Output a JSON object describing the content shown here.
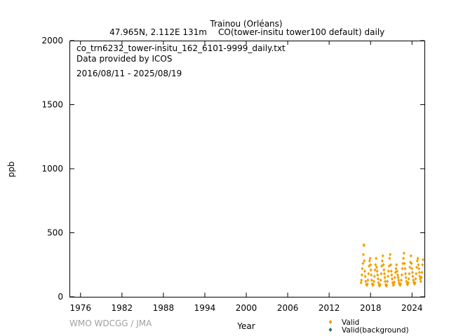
{
  "chart_data": {
    "type": "scatter",
    "title": "Trainou (Orléans)",
    "subtitle_location": "47.965N, 2.112E 131m",
    "subtitle_gas": "CO(tower-insitu tower100 default) daily",
    "info_lines": [
      "co_trn6232_tower-insitu_162_6101-9999_daily.txt",
      "Data provided by ICOS",
      "2016/08/11 - 2025/08/19"
    ],
    "xlabel": "Year",
    "ylabel": "ppb",
    "xlim": [
      1974.5,
      2025.8
    ],
    "ylim": [
      0,
      2000
    ],
    "x_ticks": [
      1976,
      1982,
      1988,
      1994,
      2000,
      2006,
      2012,
      2018,
      2024
    ],
    "y_ticks": [
      0,
      500,
      1000,
      1500,
      2000
    ],
    "grid": false,
    "legend_position": "bottom-right",
    "credit": "WMO WDCGG / JMA",
    "series": [
      {
        "name": "Valid",
        "color": "#f0a000",
        "marker": "diamond",
        "x": [
          2016.62,
          2016.68,
          2016.75,
          2016.82,
          2016.9,
          2016.96,
          2017.02,
          2017.06,
          2017.1,
          2017.16,
          2017.22,
          2017.3,
          2017.38,
          2017.46,
          2017.54,
          2017.62,
          2017.7,
          2017.78,
          2017.86,
          2017.94,
          2018.0,
          2018.05,
          2018.1,
          2018.16,
          2018.24,
          2018.32,
          2018.4,
          2018.48,
          2018.56,
          2018.64,
          2018.72,
          2018.8,
          2018.88,
          2018.96,
          2019.02,
          2019.08,
          2019.14,
          2019.22,
          2019.3,
          2019.38,
          2019.46,
          2019.54,
          2019.62,
          2019.7,
          2019.78,
          2019.86,
          2019.94,
          2020.0,
          2020.06,
          2020.12,
          2020.2,
          2020.28,
          2020.36,
          2020.44,
          2020.52,
          2020.6,
          2020.68,
          2020.76,
          2020.84,
          2020.92,
          2021.0,
          2021.06,
          2021.12,
          2021.2,
          2021.28,
          2021.36,
          2021.44,
          2021.52,
          2021.6,
          2021.68,
          2021.76,
          2021.84,
          2021.92,
          2022.0,
          2022.06,
          2022.12,
          2022.2,
          2022.28,
          2022.36,
          2022.44,
          2022.52,
          2022.6,
          2022.68,
          2022.76,
          2022.84,
          2022.92,
          2023.0,
          2023.06,
          2023.12,
          2023.2,
          2023.28,
          2023.36,
          2023.44,
          2023.52,
          2023.6,
          2023.68,
          2023.76,
          2023.84,
          2023.92,
          2024.0,
          2024.06,
          2024.12,
          2024.2,
          2024.28,
          2024.36,
          2024.44,
          2024.52,
          2024.6,
          2024.68,
          2024.76,
          2024.84,
          2024.92,
          2025.0,
          2025.06,
          2025.12,
          2025.2,
          2025.28,
          2025.36,
          2025.44,
          2025.52,
          2025.6
        ],
        "y": [
          110,
          130,
          170,
          220,
          260,
          330,
          405,
          400,
          280,
          200,
          160,
          120,
          95,
          90,
          100,
          130,
          180,
          240,
          280,
          300,
          250,
          210,
          170,
          130,
          100,
          90,
          95,
          120,
          160,
          210,
          250,
          300,
          230,
          200,
          170,
          140,
          110,
          90,
          85,
          95,
          130,
          180,
          240,
          280,
          320,
          250,
          210,
          180,
          150,
          120,
          95,
          85,
          90,
          120,
          160,
          200,
          240,
          300,
          330,
          250,
          200,
          170,
          140,
          110,
          90,
          95,
          115,
          150,
          190,
          220,
          250,
          200,
          170,
          150,
          130,
          110,
          95,
          90,
          100,
          130,
          170,
          220,
          260,
          300,
          340,
          260,
          220,
          180,
          150,
          120,
          100,
          95,
          110,
          140,
          180,
          230,
          270,
          320,
          260,
          220,
          190,
          160,
          130,
          110,
          100,
          110,
          140,
          180,
          230,
          280,
          300,
          250,
          220,
          190,
          160,
          140,
          120,
          150,
          190,
          250,
          290
        ]
      },
      {
        "name": "Valid(background)",
        "color": "#1a7a5a",
        "marker": "diamond",
        "x": [],
        "y": []
      }
    ]
  }
}
